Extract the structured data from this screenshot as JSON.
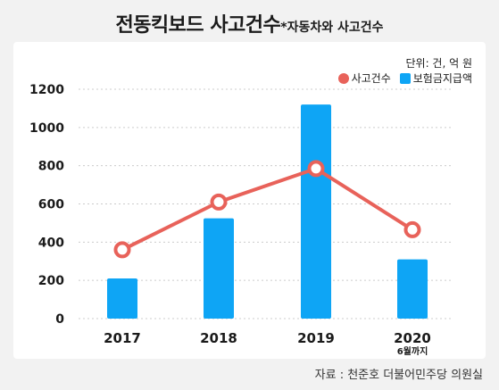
{
  "title_main": "전동킥보드 사고건수",
  "title_sub": "*자동차와 사고건수",
  "unit_text": "단위: 건, 억 원",
  "source_text": "자료 : 천준호 더불어민주당 의원실",
  "colors": {
    "line": "#e8625a",
    "bar": "#0ea5f5",
    "background": "#f2f2f2",
    "panel": "#ffffff",
    "grid": "#cccccc"
  },
  "chart_data": {
    "type": "bar+line",
    "categories": [
      "2017",
      "2018",
      "2019",
      "2020"
    ],
    "category_notes": [
      "",
      "",
      "",
      "6월까지"
    ],
    "ylim": [
      0,
      1200
    ],
    "yticks": [
      0,
      200,
      400,
      600,
      800,
      1000,
      1200
    ],
    "grid": true,
    "legend_position": "top-right",
    "series": [
      {
        "name": "사고건수",
        "type": "line",
        "values": [
          360,
          610,
          785,
          465
        ]
      },
      {
        "name": "보험금지급액",
        "type": "bar",
        "values": [
          210,
          525,
          1120,
          310
        ]
      }
    ]
  }
}
